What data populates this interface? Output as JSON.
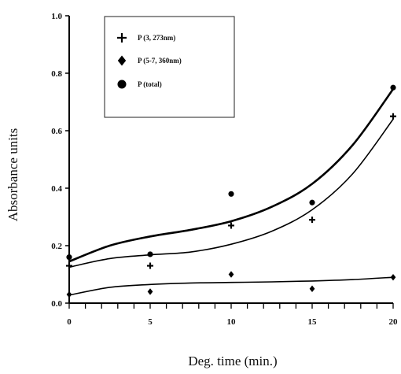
{
  "chart_data": {
    "type": "scatter",
    "title": "",
    "xlabel": "Deg. time (min.)",
    "ylabel": "Absorbance units",
    "xlim": [
      0,
      20
    ],
    "ylim": [
      0.0,
      1.0
    ],
    "x_ticks": [
      "0",
      "5",
      "10",
      "15",
      "20"
    ],
    "y_ticks": [
      "0.0",
      "0.2",
      "0.4",
      "0.6",
      "0.8",
      "1.0"
    ],
    "grid": false,
    "legend_position": "top-left",
    "series": [
      {
        "name": "P (3, 273nm)",
        "marker": "plus",
        "color": "#000000",
        "points": [
          [
            0,
            0.13
          ],
          [
            5,
            0.13
          ],
          [
            10,
            0.27
          ],
          [
            15,
            0.29
          ],
          [
            20,
            0.65
          ]
        ],
        "fit": [
          [
            0,
            0.125
          ],
          [
            2.5,
            0.155
          ],
          [
            5,
            0.168
          ],
          [
            7.5,
            0.178
          ],
          [
            10,
            0.205
          ],
          [
            12.5,
            0.25
          ],
          [
            15,
            0.325
          ],
          [
            17.5,
            0.45
          ],
          [
            20,
            0.64
          ]
        ]
      },
      {
        "name": "P (5-7, 360nm)",
        "marker": "diamond",
        "color": "#000000",
        "points": [
          [
            0,
            0.03
          ],
          [
            5,
            0.04
          ],
          [
            10,
            0.1
          ],
          [
            15,
            0.05
          ],
          [
            20,
            0.09
          ]
        ],
        "fit": [
          [
            0,
            0.028
          ],
          [
            2.5,
            0.055
          ],
          [
            5,
            0.065
          ],
          [
            7.5,
            0.07
          ],
          [
            10,
            0.072
          ],
          [
            12.5,
            0.074
          ],
          [
            15,
            0.077
          ],
          [
            17.5,
            0.082
          ],
          [
            20,
            0.09
          ]
        ]
      },
      {
        "name": "P (total)",
        "marker": "circle",
        "color": "#000000",
        "points": [
          [
            0,
            0.16
          ],
          [
            5,
            0.17
          ],
          [
            10,
            0.38
          ],
          [
            15,
            0.35
          ],
          [
            20,
            0.75
          ]
        ],
        "fit": [
          [
            0,
            0.145
          ],
          [
            2.5,
            0.2
          ],
          [
            5,
            0.232
          ],
          [
            7.5,
            0.255
          ],
          [
            10,
            0.285
          ],
          [
            12.5,
            0.335
          ],
          [
            15,
            0.415
          ],
          [
            17.5,
            0.55
          ],
          [
            20,
            0.745
          ]
        ]
      }
    ]
  }
}
